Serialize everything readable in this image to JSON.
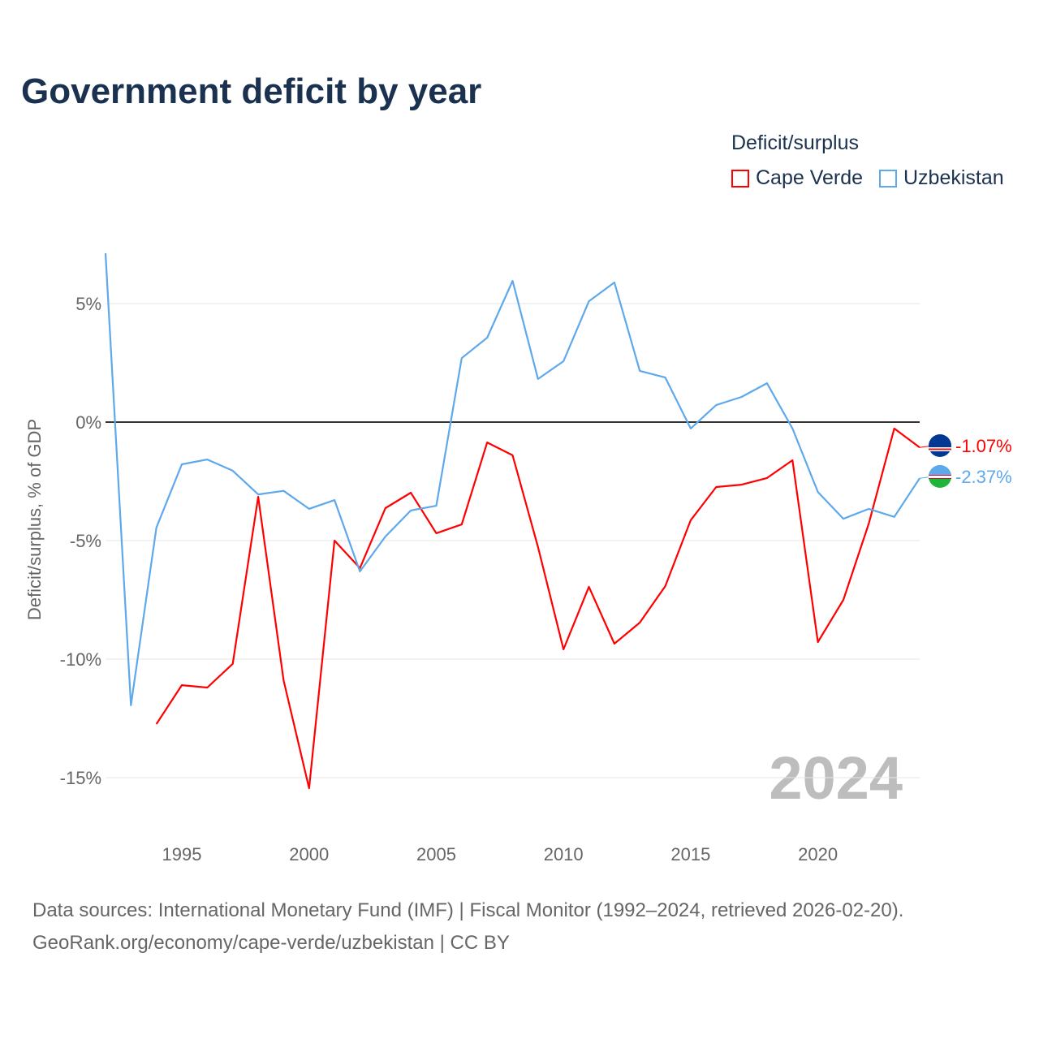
{
  "title": "Government deficit by year",
  "source_line1": "Data sources: International Monetary Fund (IMF) | Fiscal Monitor (1992–2024, retrieved 2026-02-20).",
  "source_line2": "GeoRank.org/economy/cape-verde/uzbekistan | CC BY",
  "chart_data": {
    "type": "line",
    "title": "Government deficit by year",
    "xlabel": "",
    "ylabel": "Deficit/surplus, % of GDP",
    "legend_title": "Deficit/surplus",
    "legend_position": "top-right",
    "year_watermark": "2024",
    "xlim": [
      1992,
      2024
    ],
    "ylim": [
      -17,
      8
    ],
    "x_ticks": [
      1995,
      2000,
      2005,
      2010,
      2015,
      2020
    ],
    "y_ticks": [
      5,
      0,
      -5,
      -10,
      -15
    ],
    "y_tick_labels": [
      "5%",
      "0%",
      "-5%",
      "-10%",
      "-15%"
    ],
    "grid": true,
    "series": [
      {
        "name": "Cape Verde",
        "color": "#ff0000",
        "end_label": "-1.07%",
        "x": [
          1994,
          1995,
          1996,
          1997,
          1998,
          1999,
          2000,
          2001,
          2002,
          2003,
          2004,
          2005,
          2006,
          2007,
          2008,
          2009,
          2010,
          2011,
          2012,
          2013,
          2014,
          2015,
          2016,
          2017,
          2018,
          2019,
          2020,
          2021,
          2022,
          2023,
          2024
        ],
        "values": [
          -12.74,
          -11.1,
          -11.2,
          -10.2,
          -3.15,
          -10.9,
          -15.45,
          -5.0,
          -6.16,
          -3.63,
          -2.98,
          -4.69,
          -4.32,
          -0.86,
          -1.4,
          -5.27,
          -9.59,
          -6.95,
          -9.35,
          -8.46,
          -6.92,
          -4.14,
          -2.74,
          -2.64,
          -2.36,
          -1.61,
          -9.28,
          -7.5,
          -4.28,
          -0.27,
          -1.07
        ]
      },
      {
        "name": "Uzbekistan",
        "color": "#5ea8ec",
        "end_label": "-2.37%",
        "x": [
          1992,
          1993,
          1994,
          1995,
          1996,
          1997,
          1998,
          1999,
          2000,
          2001,
          2002,
          2003,
          2004,
          2005,
          2006,
          2007,
          2008,
          2009,
          2010,
          2011,
          2012,
          2013,
          2014,
          2015,
          2016,
          2017,
          2018,
          2019,
          2020,
          2021,
          2022,
          2023,
          2024
        ],
        "values": [
          7.12,
          -11.95,
          -4.45,
          -1.78,
          -1.58,
          -2.05,
          -3.05,
          -2.9,
          -3.66,
          -3.29,
          -6.3,
          -4.83,
          -3.73,
          -3.53,
          2.7,
          3.56,
          5.96,
          1.82,
          2.57,
          5.1,
          5.89,
          2.16,
          1.88,
          -0.27,
          0.72,
          1.06,
          1.64,
          -0.27,
          -2.95,
          -4.08,
          -3.66,
          -4.0,
          -2.37
        ]
      }
    ]
  }
}
